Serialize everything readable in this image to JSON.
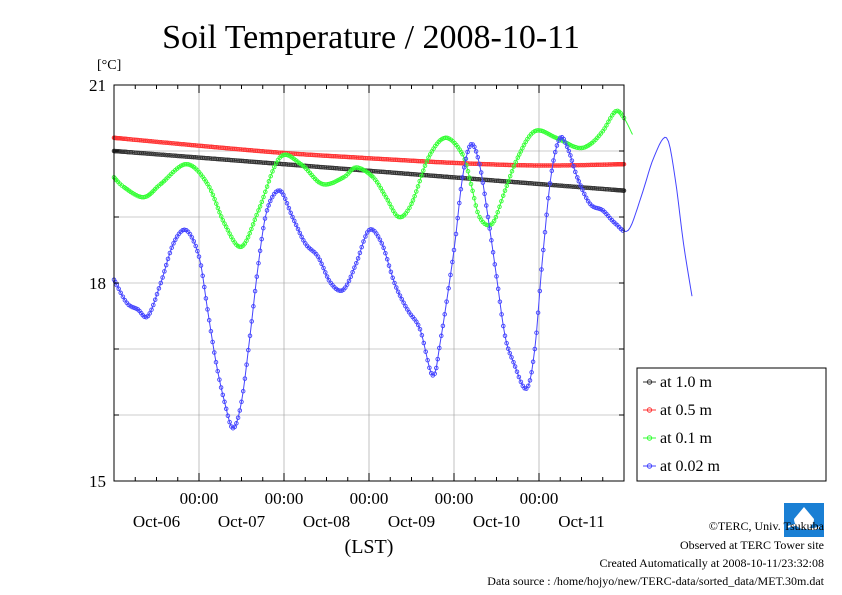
{
  "chart_data": {
    "type": "line",
    "title": "Soil Temperature / 2008-10-11",
    "ylabel": "[°C]",
    "xlabel": "(LST)",
    "ylim": [
      15,
      21
    ],
    "yticks": [
      "21",
      "18",
      "15"
    ],
    "yticks_values": [
      21,
      18,
      15
    ],
    "x_range_days": [
      0,
      6
    ],
    "x_tick_times": [
      "00:00",
      "00:00",
      "00:00",
      "00:00",
      "00:00"
    ],
    "x_day_labels": [
      "Oct-06",
      "Oct-07",
      "Oct-08",
      "Oct-09",
      "Oct-10",
      "Oct-11"
    ],
    "grid": true,
    "legend_position": "right",
    "series": [
      {
        "name": "at 1.0 m",
        "color": "#333333",
        "points": [
          [
            0,
            20.0
          ],
          [
            1,
            19.9
          ],
          [
            2,
            19.8
          ],
          [
            3,
            19.7
          ],
          [
            4,
            19.6
          ],
          [
            5,
            19.5
          ],
          [
            6,
            19.4
          ]
        ]
      },
      {
        "name": "at 0.5 m",
        "color": "#ff3333",
        "points": [
          [
            0,
            20.2
          ],
          [
            1,
            20.08
          ],
          [
            2,
            19.97
          ],
          [
            3,
            19.89
          ],
          [
            4,
            19.82
          ],
          [
            5,
            19.78
          ],
          [
            6,
            19.8
          ]
        ]
      },
      {
        "name": "at 0.1 m",
        "color": "#33ff33",
        "points": [
          [
            0,
            19.6
          ],
          [
            0.12,
            19.45
          ],
          [
            0.35,
            19.3
          ],
          [
            0.55,
            19.5
          ],
          [
            0.85,
            19.8
          ],
          [
            1.1,
            19.5
          ],
          [
            1.3,
            18.9
          ],
          [
            1.5,
            18.55
          ],
          [
            1.7,
            19.1
          ],
          [
            1.95,
            19.9
          ],
          [
            2.2,
            19.8
          ],
          [
            2.45,
            19.5
          ],
          [
            2.7,
            19.6
          ],
          [
            2.85,
            19.75
          ],
          [
            3.05,
            19.6
          ],
          [
            3.2,
            19.3
          ],
          [
            3.35,
            19.0
          ],
          [
            3.5,
            19.2
          ],
          [
            3.7,
            19.9
          ],
          [
            3.9,
            20.2
          ],
          [
            4.1,
            19.95
          ],
          [
            4.2,
            19.5
          ],
          [
            4.3,
            19.0
          ],
          [
            4.45,
            18.9
          ],
          [
            4.6,
            19.4
          ],
          [
            4.75,
            19.9
          ],
          [
            4.95,
            20.3
          ],
          [
            5.2,
            20.2
          ],
          [
            5.45,
            20.05
          ],
          [
            5.6,
            20.1
          ],
          [
            5.75,
            20.3
          ],
          [
            5.9,
            20.6
          ],
          [
            6,
            20.5
          ],
          [
            6.1,
            20.25
          ]
        ]
      },
      {
        "name": "at 0.02 m",
        "color": "#4444ff",
        "points": [
          [
            0,
            18.05
          ],
          [
            0.15,
            17.7
          ],
          [
            0.28,
            17.6
          ],
          [
            0.4,
            17.5
          ],
          [
            0.55,
            18.0
          ],
          [
            0.7,
            18.6
          ],
          [
            0.85,
            18.8
          ],
          [
            1.0,
            18.4
          ],
          [
            1.1,
            17.6
          ],
          [
            1.2,
            16.8
          ],
          [
            1.3,
            16.2
          ],
          [
            1.4,
            15.8
          ],
          [
            1.5,
            16.2
          ],
          [
            1.6,
            17.2
          ],
          [
            1.7,
            18.3
          ],
          [
            1.8,
            19.1
          ],
          [
            1.95,
            19.4
          ],
          [
            2.1,
            19.0
          ],
          [
            2.25,
            18.6
          ],
          [
            2.4,
            18.4
          ],
          [
            2.55,
            18.0
          ],
          [
            2.7,
            17.9
          ],
          [
            2.85,
            18.3
          ],
          [
            3.0,
            18.8
          ],
          [
            3.15,
            18.6
          ],
          [
            3.3,
            18.0
          ],
          [
            3.45,
            17.6
          ],
          [
            3.6,
            17.3
          ],
          [
            3.75,
            16.6
          ],
          [
            3.85,
            17.2
          ],
          [
            4.0,
            18.5
          ],
          [
            4.1,
            19.6
          ],
          [
            4.2,
            20.1
          ],
          [
            4.3,
            19.8
          ],
          [
            4.4,
            19.0
          ],
          [
            4.5,
            18.1
          ],
          [
            4.6,
            17.2
          ],
          [
            4.7,
            16.8
          ],
          [
            4.85,
            16.4
          ],
          [
            4.95,
            17.0
          ],
          [
            5.05,
            18.5
          ],
          [
            5.15,
            19.7
          ],
          [
            5.25,
            20.2
          ],
          [
            5.35,
            20.0
          ],
          [
            5.45,
            19.6
          ],
          [
            5.6,
            19.2
          ],
          [
            5.75,
            19.1
          ],
          [
            5.9,
            18.9
          ],
          [
            6.05,
            18.8
          ],
          [
            6.2,
            19.3
          ],
          [
            6.35,
            19.9
          ],
          [
            6.5,
            20.2
          ],
          [
            6.6,
            19.6
          ],
          [
            6.7,
            18.6
          ],
          [
            6.8,
            17.8
          ]
        ]
      }
    ]
  },
  "footer": {
    "copyright": "©TERC, Univ. Tsukuba",
    "observed": "Observed at TERC Tower site",
    "created": "Created Automatically at 2008-10-11/23:32:08",
    "source": "Data source : /home/hojyo/new/TERC-data/sorted_data/MET.30m.dat"
  },
  "logo": {
    "icon": "terc-logo-icon",
    "color": "#1a7fd4"
  }
}
